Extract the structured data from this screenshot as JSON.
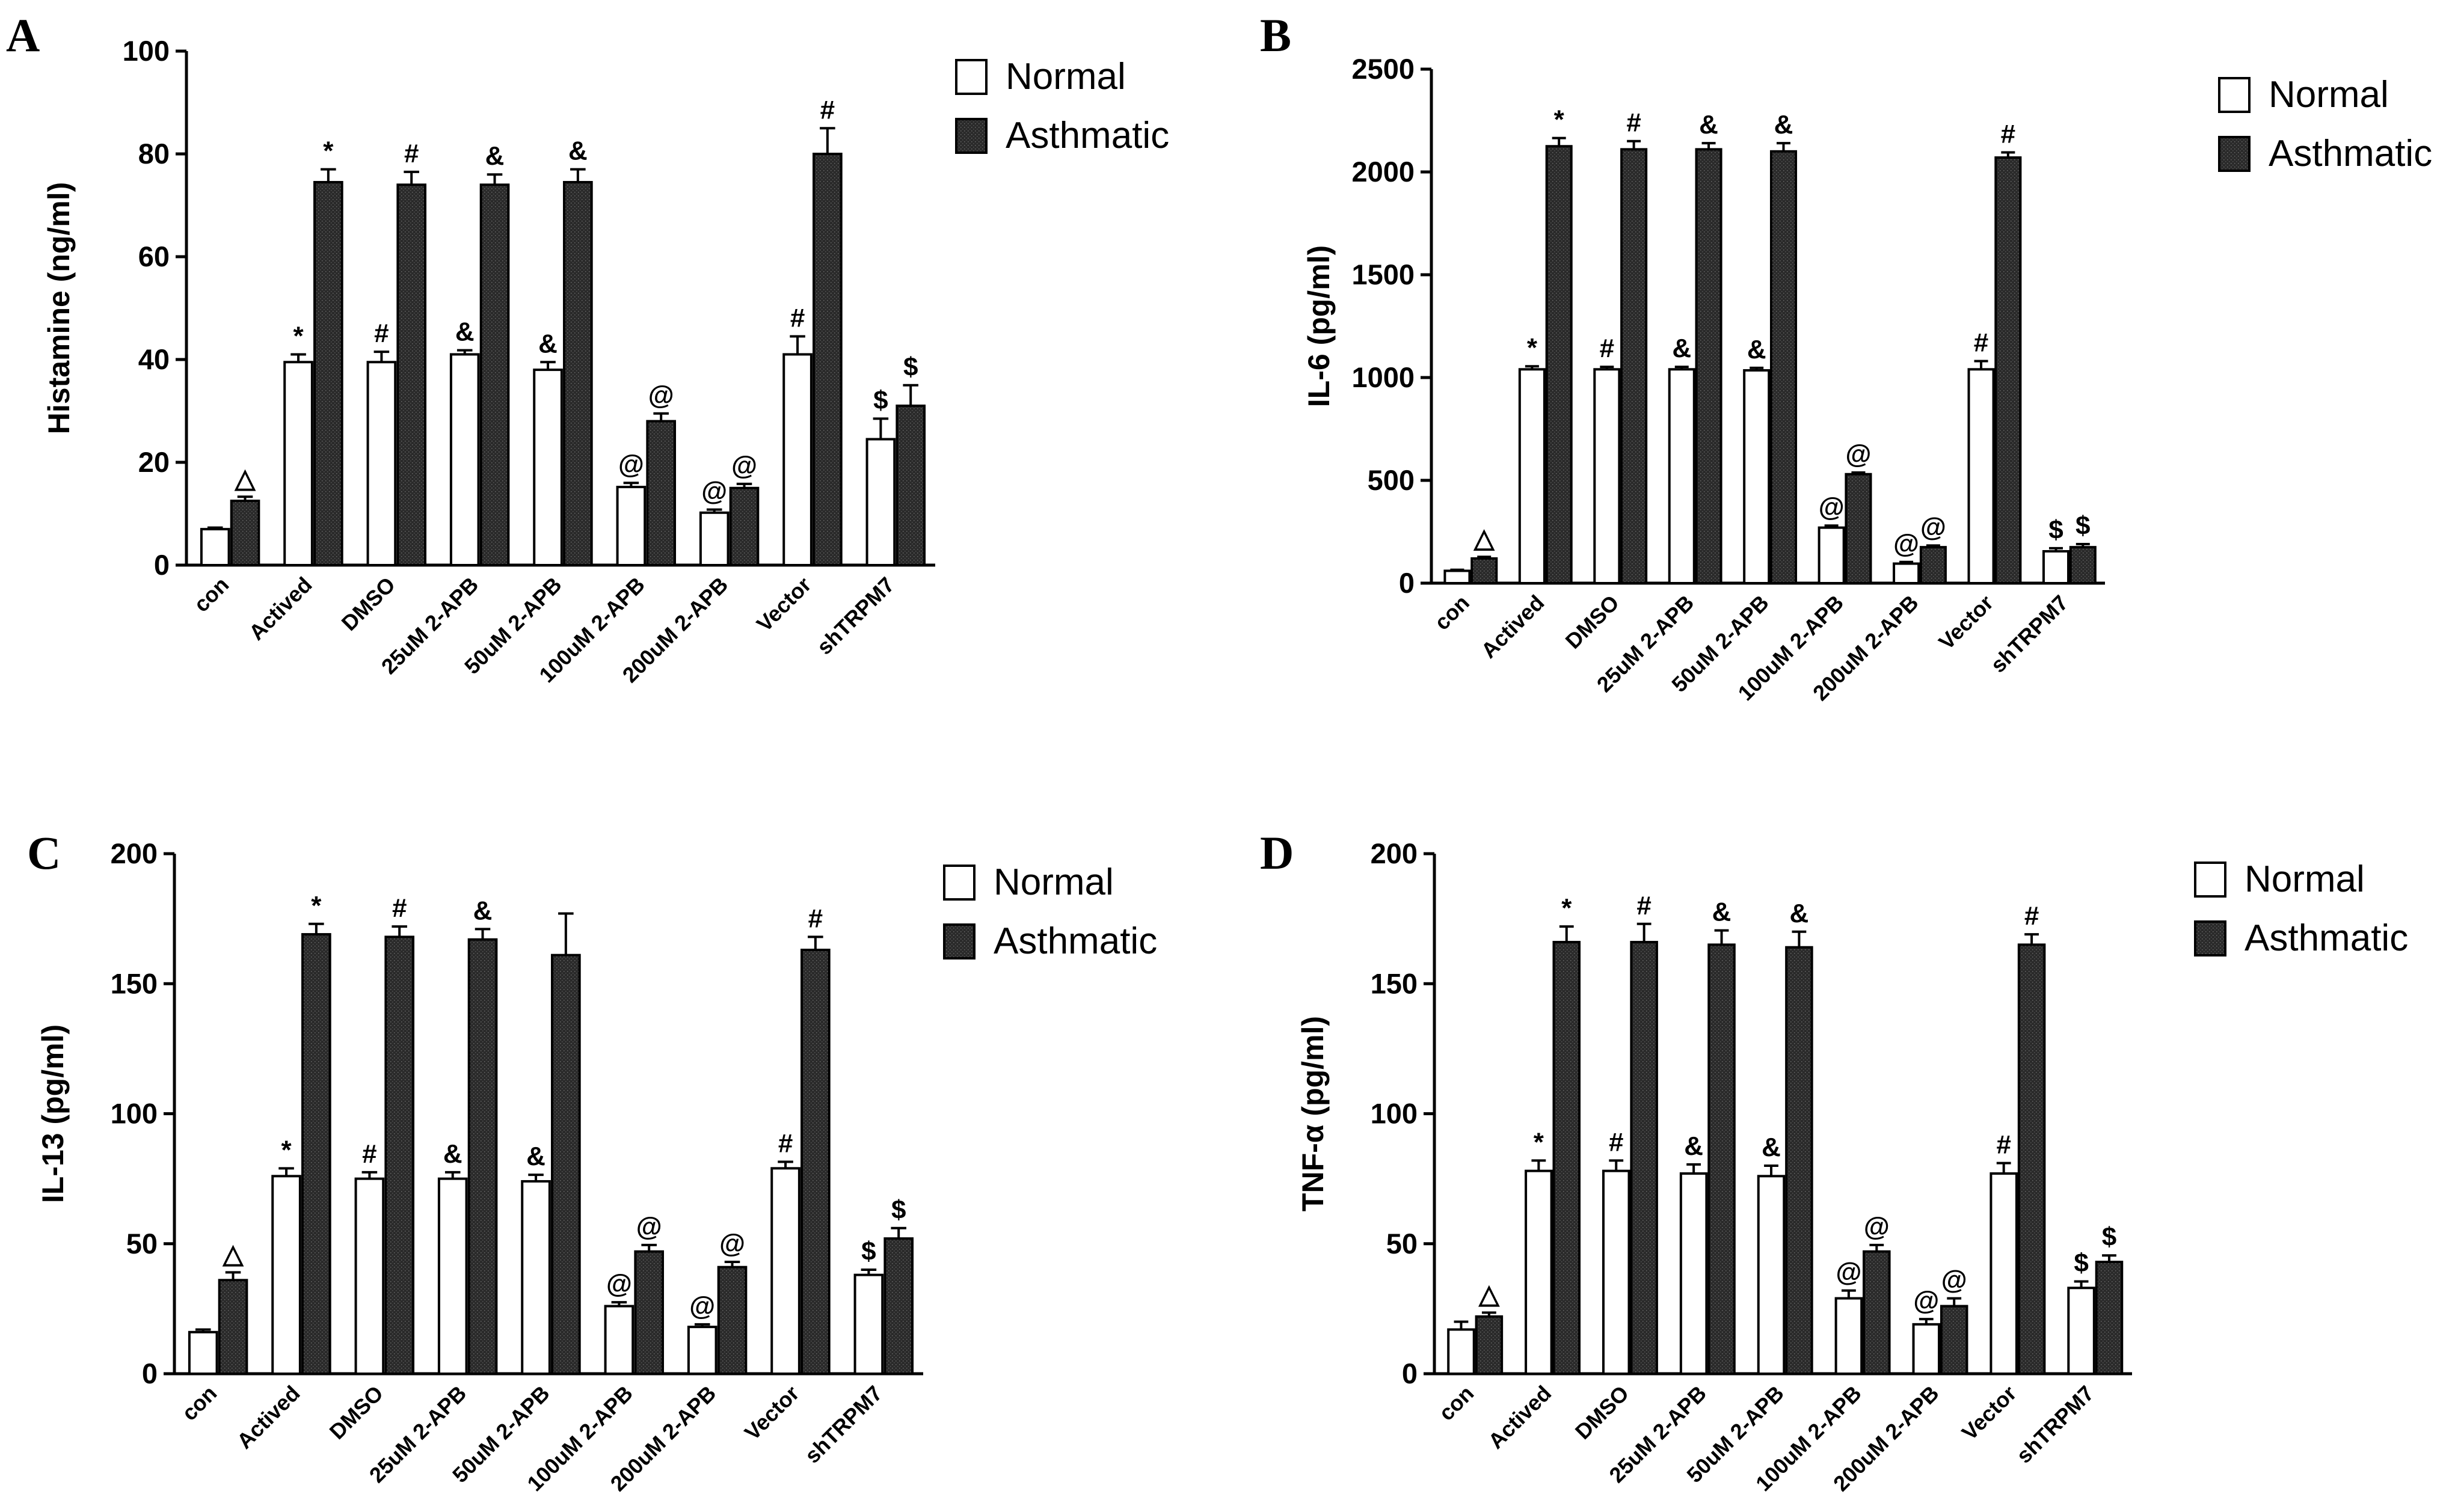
{
  "legend_labels": {
    "normal": "Normal",
    "asthmatic": "Asthmatic"
  },
  "colors": {
    "normal": "#ffffff",
    "asthmatic": "#2a2a2a",
    "stroke": "#000000"
  },
  "chart_data": [
    {
      "panel": "A",
      "type": "bar",
      "ylabel": "Histamine (ng/ml)",
      "ylim": [
        0,
        100
      ],
      "yticks": [
        0,
        20,
        40,
        60,
        80,
        100
      ],
      "categories": [
        "con",
        "Actived",
        "DMSO",
        "25uM 2-APB",
        "50uM 2-APB",
        "100uM 2-APB",
        "200uM 2-APB",
        "Vector",
        "shTRPM7"
      ],
      "series": [
        {
          "name": "Normal",
          "values": [
            7,
            39.5,
            39.5,
            41,
            38,
            15.2,
            10.2,
            41,
            24.5
          ],
          "errors": [
            0.3,
            1.5,
            2,
            0.8,
            1.5,
            0.8,
            0.6,
            3.5,
            4
          ]
        },
        {
          "name": "Asthmatic",
          "values": [
            12.5,
            74.5,
            74,
            74,
            74.5,
            28,
            15,
            80,
            31
          ],
          "errors": [
            0.8,
            2.5,
            2.5,
            2,
            2.5,
            1.5,
            0.8,
            5,
            4
          ]
        }
      ],
      "annotations": {
        "Normal": [
          "",
          "*",
          "#",
          "&",
          "&",
          "@",
          "@",
          "#",
          "$"
        ],
        "Asthmatic": [
          "△",
          "*",
          "#",
          "&",
          "&",
          "@",
          "@",
          "#",
          "$"
        ]
      }
    },
    {
      "panel": "B",
      "type": "bar",
      "ylabel": "IL-6  (pg/ml)",
      "ylim": [
        0,
        2500
      ],
      "yticks": [
        0,
        500,
        1000,
        1500,
        2000,
        2500
      ],
      "categories": [
        "con",
        "Actived",
        "DMSO",
        "25uM 2-APB",
        "50uM 2-APB",
        "100uM 2-APB",
        "200uM 2-APB",
        "Vector",
        "shTRPM7"
      ],
      "series": [
        {
          "name": "Normal",
          "values": [
            60,
            1040,
            1040,
            1040,
            1035,
            270,
            95,
            1040,
            155
          ],
          "errors": [
            5,
            15,
            12,
            12,
            12,
            10,
            8,
            40,
            15
          ]
        },
        {
          "name": "Asthmatic",
          "values": [
            120,
            2125,
            2110,
            2110,
            2100,
            530,
            175,
            2070,
            175
          ],
          "errors": [
            8,
            40,
            40,
            30,
            40,
            8,
            8,
            25,
            15
          ]
        }
      ],
      "annotations": {
        "Normal": [
          "",
          "*",
          "#",
          "&",
          "&",
          "@",
          "@",
          "#",
          "$"
        ],
        "Asthmatic": [
          "△",
          "*",
          "#",
          "&",
          "&",
          "@",
          "@",
          "#",
          "$"
        ]
      }
    },
    {
      "panel": "C",
      "type": "bar",
      "ylabel": "IL-13  (pg/ml)",
      "ylim": [
        0,
        200
      ],
      "yticks": [
        0,
        50,
        100,
        150,
        200
      ],
      "categories": [
        "con",
        "Actived",
        "DMSO",
        "25uM 2-APB",
        "50uM 2-APB",
        "100uM 2-APB",
        "200uM 2-APB",
        "Vector",
        "shTRPM7"
      ],
      "series": [
        {
          "name": "Normal",
          "values": [
            16,
            76,
            75,
            75,
            74,
            26,
            18,
            79,
            38
          ],
          "errors": [
            1,
            3,
            2.5,
            2.5,
            2.5,
            1.5,
            1,
            2.5,
            2
          ]
        },
        {
          "name": "Asthmatic",
          "values": [
            36,
            169,
            168,
            167,
            161,
            47,
            41,
            163,
            52
          ],
          "errors": [
            3,
            4,
            4,
            4,
            16,
            2.5,
            2,
            5,
            4
          ]
        }
      ],
      "annotations": {
        "Normal": [
          "",
          "*",
          "#",
          "&",
          "&",
          "@",
          "@",
          "#",
          "$"
        ],
        "Asthmatic": [
          "△",
          "*",
          "#",
          "&",
          "",
          "@",
          "@",
          "#",
          "$"
        ]
      }
    },
    {
      "panel": "D",
      "type": "bar",
      "ylabel": "TNF-α  (pg/ml)",
      "ylim": [
        0,
        200
      ],
      "yticks": [
        0,
        50,
        100,
        150,
        200
      ],
      "categories": [
        "con",
        "Actived",
        "DMSO",
        "25uM 2-APB",
        "50uM 2-APB",
        "100uM 2-APB",
        "200uM 2-APB",
        "Vector",
        "shTRPM7"
      ],
      "series": [
        {
          "name": "Normal",
          "values": [
            17,
            78,
            78,
            77,
            76,
            29,
            19,
            77,
            33
          ],
          "errors": [
            3,
            4,
            4,
            3.5,
            4,
            3,
            2,
            4,
            2.5
          ]
        },
        {
          "name": "Asthmatic",
          "values": [
            22,
            166,
            166,
            165,
            164,
            47,
            26,
            165,
            43
          ],
          "errors": [
            1.5,
            6,
            7,
            5.5,
            6,
            2.5,
            3,
            4,
            2.5
          ]
        }
      ],
      "annotations": {
        "Normal": [
          "",
          "*",
          "#",
          "&",
          "&",
          "@",
          "@",
          "#",
          "$"
        ],
        "Asthmatic": [
          "△",
          "*",
          "#",
          "&",
          "&",
          "@",
          "@",
          "#",
          "$"
        ]
      }
    }
  ]
}
